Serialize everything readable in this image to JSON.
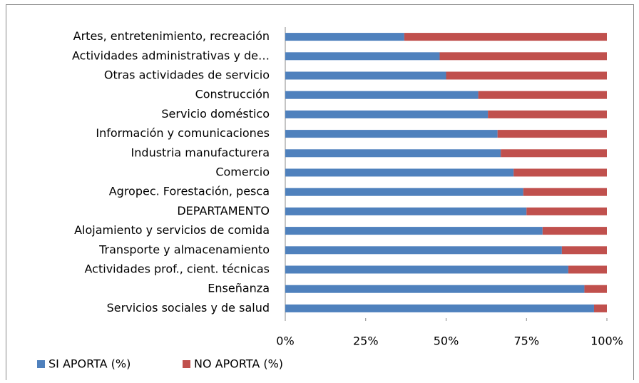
{
  "chart_data": {
    "type": "stacked_bar_horizontal",
    "categories": [
      "Artes, entretenimiento, recreación",
      "Actividades administrativas y de…",
      "Otras actividades de servicio",
      "Construcción",
      "Servicio doméstico",
      "Información y comunicaciones",
      "Industria manufacturera",
      "Comercio",
      "Agropec. Forestación, pesca",
      "DEPARTAMENTO",
      "Alojamiento y servicios de comida",
      "Transporte y almacenamiento",
      "Actividades prof., cient. técnicas",
      "Enseñanza",
      "Servicios sociales y de salud"
    ],
    "series": [
      {
        "name": "SI APORTA (%)",
        "color": "#4f81bd",
        "values": [
          37,
          48,
          50,
          60,
          63,
          66,
          67,
          71,
          74,
          75,
          80,
          86,
          88,
          93,
          96
        ]
      },
      {
        "name": "NO APORTA (%)",
        "color": "#c0504d",
        "values": [
          63,
          52,
          50,
          40,
          37,
          34,
          33,
          29,
          26,
          25,
          20,
          14,
          12,
          7,
          4
        ]
      }
    ],
    "xlim": [
      0,
      100
    ],
    "xticks": [
      {
        "value": 0,
        "label": "0%"
      },
      {
        "value": 25,
        "label": "25%"
      },
      {
        "value": 50,
        "label": "50%"
      },
      {
        "value": 75,
        "label": "75%"
      },
      {
        "value": 100,
        "label": "100%"
      }
    ],
    "legend": "bottom-left"
  }
}
